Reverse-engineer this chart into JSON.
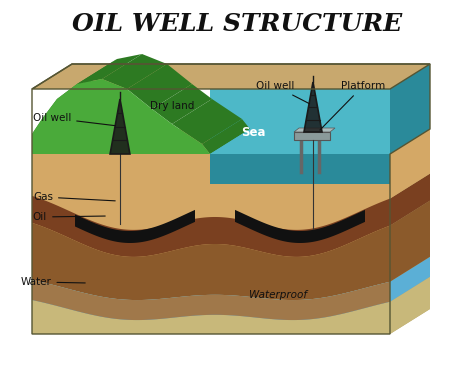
{
  "title": "OIL WELL STRUCTURE",
  "title_fontsize": 18,
  "title_fontweight": "bold",
  "title_fontstyle": "italic",
  "bg_color": "#ffffff",
  "labels": {
    "oil_well_land": "Oil well",
    "dry_land": "Dry land",
    "sea": "Sea",
    "oil_well_sea": "Oil well",
    "platform": "Platform",
    "gas": "Gas",
    "oil": "Oil",
    "water": "Water",
    "waterproof": "Waterproof"
  },
  "colors": {
    "sea_water": "#4db8c8",
    "sea_deep": "#2a8a9a",
    "green_hill": "#4aaa3a",
    "green_hill_dark": "#2d7a22",
    "sand_top": "#c8a86e",
    "sand_layer": "#d4a866",
    "dark_brown": "#7a4020",
    "brown_layer": "#8b5a2b",
    "blue_water": "#5bafd6",
    "sandy_bottom": "#c8b87a",
    "gray_platform": "#8a9a9a",
    "side_shadow": "#b8a870",
    "waterproof_layer": "#a0784a"
  }
}
